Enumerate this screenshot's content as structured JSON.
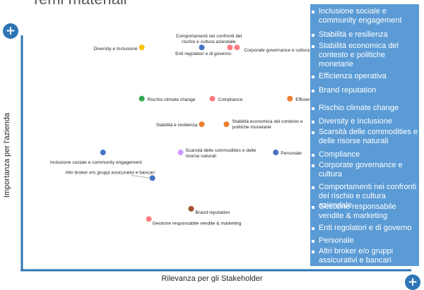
{
  "page": {
    "title": "Temi materiali"
  },
  "colors": {
    "axis": "#2e75b6",
    "panel": "#5b9bd5",
    "yellow": "#ffc000",
    "blue": "#4472c4",
    "pink": "#ff7c80",
    "green": "#34a853",
    "orange": "#ed7d31",
    "lilac": "#cc99ff",
    "brown": "#a0522d",
    "lightblue": "#5b9bd5"
  },
  "axes": {
    "y_button": "+",
    "x_button": "+"
  },
  "chart_data": {
    "type": "scatter",
    "xlabel": "Rilevanza per gli Stakeholder",
    "ylabel": "Importanza per l'azienda",
    "xlim": [
      0,
      10
    ],
    "ylim": [
      0,
      10
    ],
    "points": [
      {
        "label": "Diversity e Inclusione",
        "x": 3.4,
        "y": 8.7,
        "color": "yellow"
      },
      {
        "label": "Enti regolatori e di governo",
        "x": 5.1,
        "y": 8.7,
        "color": "blue"
      },
      {
        "label": "Comportamenti nei confronti del rischio e cultura aziendale",
        "x": 5.9,
        "y": 8.7,
        "color": "pink"
      },
      {
        "label": "Corporate governance e cultura",
        "x": 6.1,
        "y": 8.7,
        "color": "pink"
      },
      {
        "label": "Rischio climate change",
        "x": 3.4,
        "y": 6.7,
        "color": "green"
      },
      {
        "label": "Compliance",
        "x": 5.4,
        "y": 6.7,
        "color": "pink"
      },
      {
        "label": "Efficienza operativa",
        "x": 7.6,
        "y": 6.7,
        "color": "orange"
      },
      {
        "label": "Stabilità e resilienza",
        "x": 5.1,
        "y": 5.7,
        "color": "orange"
      },
      {
        "label": "Stabilità economica del contesto e politiche monetarie",
        "x": 5.8,
        "y": 5.7,
        "color": "orange"
      },
      {
        "label": "Inclusione sociale e community engagement",
        "x": 2.3,
        "y": 4.6,
        "color": "blue"
      },
      {
        "label": "Scarsità delle commodities e delle risorse naturali",
        "x": 4.5,
        "y": 4.6,
        "color": "lilac"
      },
      {
        "label": "Personale",
        "x": 7.2,
        "y": 4.6,
        "color": "blue"
      },
      {
        "label": "Altri broker e/o gruppi assicurativi e bancari",
        "x": 3.7,
        "y": 3.6,
        "color": "blue"
      },
      {
        "label": "Brand reputation",
        "x": 4.8,
        "y": 2.4,
        "color": "brown"
      },
      {
        "label": "Gestione responsabile vendite & marketing",
        "x": 3.6,
        "y": 2.0,
        "color": "pink"
      }
    ]
  },
  "legend": {
    "items": [
      "Inclusione sociale e community engagement",
      "Stabilità e resilienza",
      "Stabilità economica del contesto e politiche monetarie",
      "Efficienza operativa",
      "Brand reputation",
      "Rischio climate change",
      "Diversity e Inclusione",
      "Scarsità delle commodities e delle risorse naturali",
      "Compliance",
      "Corporate governance e cultura",
      "Comportamenti nei confronti del rischio e cultura aziendale",
      "Gestione responsabile vendite & marketing",
      "Enti regolatori e di governo",
      "Personale",
      "Altri broker e/o gruppi assicurativi e bancari"
    ]
  }
}
